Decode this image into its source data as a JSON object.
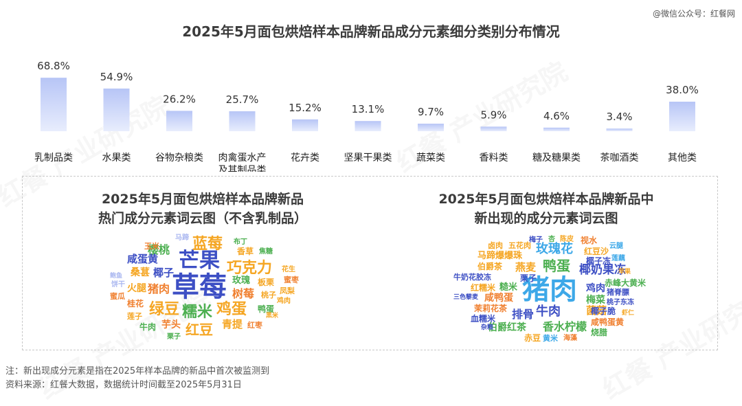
{
  "watermark": "@微信公众号：红餐网",
  "background_watermark": "红餐 产业研究院",
  "chart_data": {
    "type": "bar",
    "title": "2025年5月面包烘焙样本品牌新品成分元素细分类别分布情况",
    "categories": [
      "乳制品类",
      "水果类",
      "谷物杂粮类",
      "肉禽蛋水产及其制品类",
      "花卉类",
      "坚果干果类",
      "蔬菜类",
      "香料类",
      "糖及糖果类",
      "茶咖酒类",
      "其他类"
    ],
    "category_lines": [
      [
        "乳制品类"
      ],
      [
        "水果类"
      ],
      [
        "谷物杂粮类"
      ],
      [
        "肉禽蛋水产",
        "及其制品类"
      ],
      [
        "花卉类"
      ],
      [
        "坚果干果类"
      ],
      [
        "蔬菜类"
      ],
      [
        "香料类"
      ],
      [
        "糖及糖果类"
      ],
      [
        "茶咖酒类"
      ],
      [
        "其他类"
      ]
    ],
    "values": [
      68.8,
      54.9,
      26.2,
      25.7,
      15.2,
      13.1,
      9.7,
      5.9,
      4.6,
      3.4,
      38.0
    ],
    "value_labels": [
      "68.8%",
      "54.9%",
      "26.2%",
      "25.7%",
      "15.2%",
      "13.1%",
      "9.7%",
      "5.9%",
      "4.6%",
      "3.4%",
      "38.0%"
    ],
    "ylim": [
      0,
      100
    ],
    "grid": false,
    "bar_color_top": "#b7c5f6",
    "bar_color_bottom": "#e8edfd"
  },
  "cloud_left": {
    "title_line1": "2025年5月面包烘焙样本品牌新品",
    "title_line2": "热门成分元素词云图（不含乳制品）"
  },
  "cloud_right": {
    "title_line1": "2025年5月面包烘焙样本品牌新品中",
    "title_line2": "新出现的成分元素词云图"
  },
  "footnote": {
    "note": "注：新出现成分元素是指在2025年样本品牌的新品中首次被监测到",
    "source": "资料来源：红餐大数据，数据统计时间截至2025年5月31日"
  }
}
